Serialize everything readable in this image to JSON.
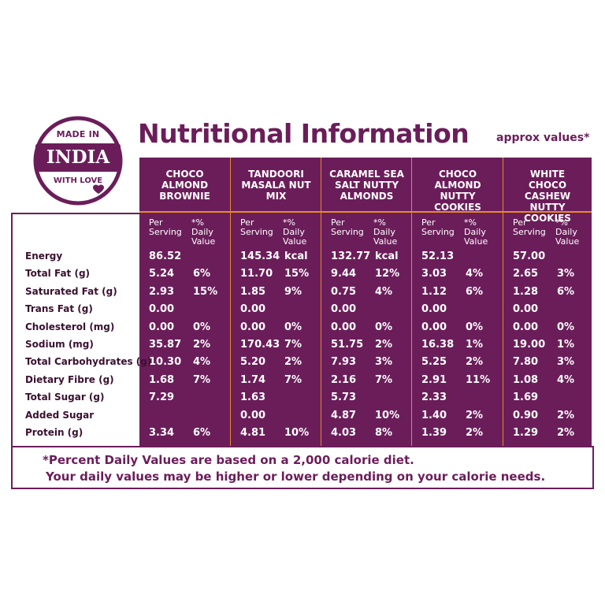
{
  "badge": {
    "top": "MADE IN",
    "main": "INDIA",
    "bottom": "WITH LOVE"
  },
  "title": "Nutritional Information",
  "approx": "approx values*",
  "products": [
    {
      "name": "CHOCO ALMOND BROWNIE"
    },
    {
      "name": "TANDOORI MASALA NUT MIX"
    },
    {
      "name": "CARAMEL SEA SALT NUTTY ALMONDS"
    },
    {
      "name": "CHOCO ALMOND NUTTY COOKIES"
    },
    {
      "name": "WHITE CHOCO CASHEW NUTTY COOKIES"
    }
  ],
  "subheads": {
    "per": "Per Serving",
    "dv": "*% Daily Value"
  },
  "rows": [
    {
      "label": "Energy",
      "values": [
        [
          "86.52",
          ""
        ],
        [
          "145.34",
          "kcal"
        ],
        [
          "132.77",
          "kcal"
        ],
        [
          "52.13",
          ""
        ],
        [
          "57.00",
          ""
        ]
      ]
    },
    {
      "label": "Total Fat (g)",
      "values": [
        [
          "5.24",
          "6%"
        ],
        [
          "11.70",
          "15%"
        ],
        [
          "9.44",
          "12%"
        ],
        [
          "3.03",
          "4%"
        ],
        [
          "2.65",
          "3%"
        ]
      ]
    },
    {
      "label": "Saturated Fat (g)",
      "values": [
        [
          "2.93",
          "15%"
        ],
        [
          "1.85",
          "9%"
        ],
        [
          "0.75",
          "4%"
        ],
        [
          "1.12",
          "6%"
        ],
        [
          "1.28",
          "6%"
        ]
      ]
    },
    {
      "label": "Trans Fat (g)",
      "values": [
        [
          "0.00",
          ""
        ],
        [
          "0.00",
          ""
        ],
        [
          "0.00",
          ""
        ],
        [
          "0.00",
          ""
        ],
        [
          "0.00",
          ""
        ]
      ]
    },
    {
      "label": "Cholesterol (mg)",
      "values": [
        [
          "0.00",
          "0%"
        ],
        [
          "0.00",
          "0%"
        ],
        [
          "0.00",
          "0%"
        ],
        [
          "0.00",
          "0%"
        ],
        [
          "0.00",
          "0%"
        ]
      ]
    },
    {
      "label": "Sodium (mg)",
      "values": [
        [
          "35.87",
          "2%"
        ],
        [
          "170.43",
          "7%"
        ],
        [
          "51.75",
          "2%"
        ],
        [
          "16.38",
          "1%"
        ],
        [
          "19.00",
          "1%"
        ]
      ]
    },
    {
      "label": "Total Carbohydrates (g)",
      "values": [
        [
          "10.30",
          "4%"
        ],
        [
          "5.20",
          "2%"
        ],
        [
          "7.93",
          "3%"
        ],
        [
          "5.25",
          "2%"
        ],
        [
          "7.80",
          "3%"
        ]
      ]
    },
    {
      "label": "Dietary Fibre (g)",
      "values": [
        [
          "1.68",
          "7%"
        ],
        [
          "1.74",
          "7%"
        ],
        [
          "2.16",
          "7%"
        ],
        [
          "2.91",
          "11%"
        ],
        [
          "1.08",
          "4%"
        ]
      ]
    },
    {
      "label": "Total Sugar (g)",
      "values": [
        [
          "7.29",
          ""
        ],
        [
          "1.63",
          ""
        ],
        [
          "5.73",
          ""
        ],
        [
          "2.33",
          ""
        ],
        [
          "1.69",
          ""
        ]
      ]
    },
    {
      "label": "Added Sugar",
      "values": [
        [
          "",
          ""
        ],
        [
          "0.00",
          ""
        ],
        [
          "4.87",
          "10%"
        ],
        [
          "1.40",
          "2%"
        ],
        [
          "0.90",
          "2%"
        ]
      ]
    },
    {
      "label": "Protein (g)",
      "values": [
        [
          "3.34",
          "6%"
        ],
        [
          "4.81",
          "10%"
        ],
        [
          "4.03",
          "8%"
        ],
        [
          "1.39",
          "2%"
        ],
        [
          "1.29",
          "2%"
        ]
      ]
    }
  ],
  "footnote": {
    "line1": "*Percent Daily Values are based on a 2,000 calorie diet.",
    "line2": "Your daily values may be higher or lower depending on your calorie needs."
  },
  "colors": {
    "brand": "#6b1d5a",
    "accent": "#e58a2f",
    "text": "#ffffff"
  }
}
